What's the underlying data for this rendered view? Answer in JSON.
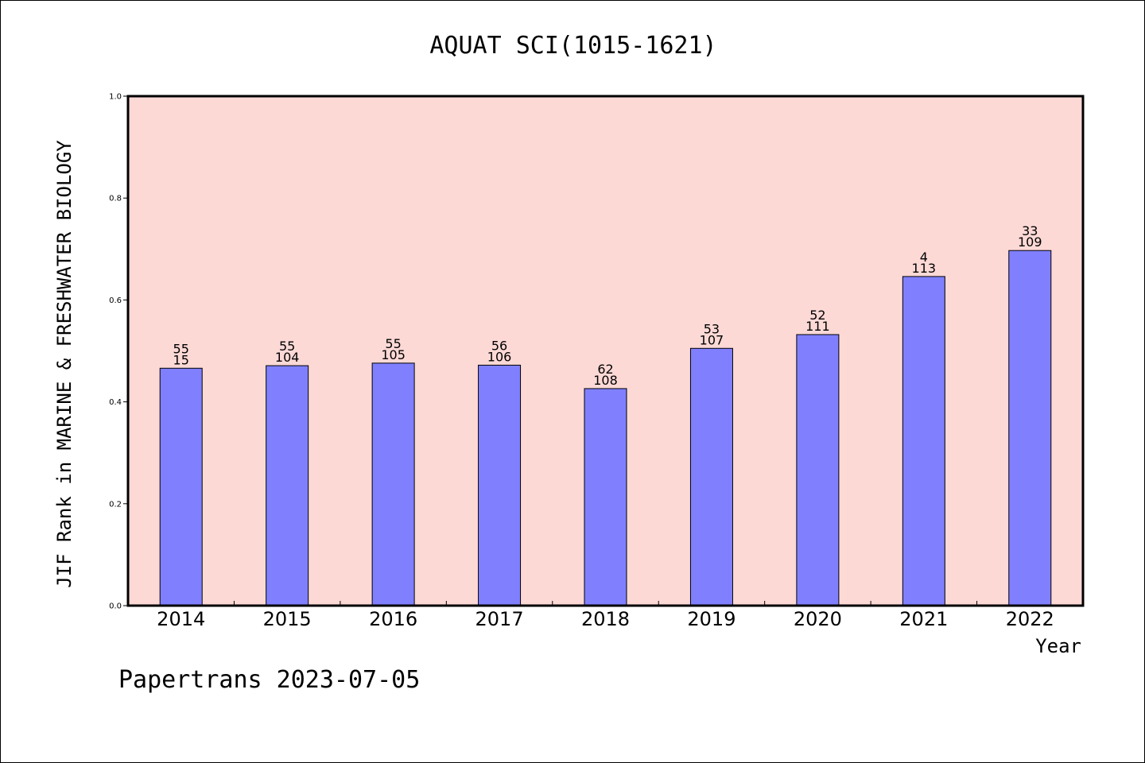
{
  "chart_data": {
    "type": "bar",
    "title": "AQUAT SCI(1015-1621)",
    "xlabel": "Year",
    "ylabel": "JIF Rank in MARINE & FRESHWATER BIOLOGY",
    "categories": [
      "2014",
      "2015",
      "2016",
      "2017",
      "2018",
      "2019",
      "2020",
      "2021",
      "2022"
    ],
    "values": [
      0.466,
      0.471,
      0.476,
      0.472,
      0.426,
      0.505,
      0.532,
      0.646,
      0.697
    ],
    "label_top": [
      "55",
      "55",
      "55",
      "56",
      "62",
      "53",
      "52",
      "4",
      "33"
    ],
    "label_bottom": [
      "15",
      "104",
      "105",
      "106",
      "108",
      "107",
      "111",
      "113",
      "109"
    ],
    "ylim": [
      0,
      1.0
    ],
    "yticks": [
      "0.0",
      "0.2",
      "0.4",
      "0.6",
      "0.8",
      "1.0"
    ],
    "grid": false,
    "colors": {
      "plot_background": "#fdd9d6",
      "bar_fill": "#8080ff",
      "bar_edge": "#000000"
    }
  },
  "footer": "Papertrans 2023-07-05"
}
